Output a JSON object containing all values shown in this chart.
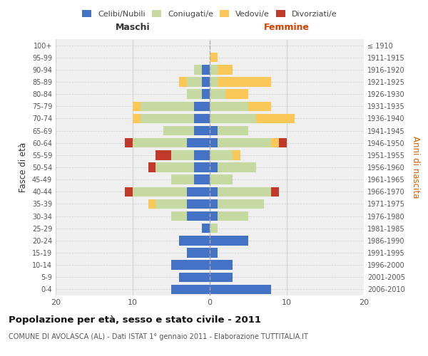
{
  "age_groups": [
    "0-4",
    "5-9",
    "10-14",
    "15-19",
    "20-24",
    "25-29",
    "30-34",
    "35-39",
    "40-44",
    "45-49",
    "50-54",
    "55-59",
    "60-64",
    "65-69",
    "70-74",
    "75-79",
    "80-84",
    "85-89",
    "90-94",
    "95-99",
    "100+"
  ],
  "birth_years": [
    "2006-2010",
    "2001-2005",
    "1996-2000",
    "1991-1995",
    "1986-1990",
    "1981-1985",
    "1976-1980",
    "1971-1975",
    "1966-1970",
    "1961-1965",
    "1956-1960",
    "1951-1955",
    "1946-1950",
    "1941-1945",
    "1936-1940",
    "1931-1935",
    "1926-1930",
    "1921-1925",
    "1916-1920",
    "1911-1915",
    "≤ 1910"
  ],
  "maschi": {
    "celibi": [
      5,
      4,
      5,
      3,
      4,
      1,
      3,
      3,
      3,
      2,
      2,
      2,
      3,
      2,
      2,
      2,
      1,
      1,
      1,
      0,
      0
    ],
    "coniugati": [
      0,
      0,
      0,
      0,
      0,
      0,
      2,
      4,
      7,
      3,
      5,
      3,
      7,
      4,
      7,
      7,
      2,
      2,
      1,
      0,
      0
    ],
    "vedovi": [
      0,
      0,
      0,
      0,
      0,
      0,
      0,
      1,
      0,
      0,
      0,
      0,
      0,
      0,
      1,
      1,
      0,
      1,
      0,
      0,
      0
    ],
    "divorziati": [
      0,
      0,
      0,
      0,
      0,
      0,
      0,
      0,
      1,
      0,
      1,
      2,
      1,
      0,
      0,
      0,
      0,
      0,
      0,
      0,
      0
    ]
  },
  "femmine": {
    "nubili": [
      8,
      3,
      3,
      1,
      5,
      0,
      1,
      1,
      1,
      0,
      1,
      0,
      1,
      1,
      0,
      0,
      0,
      0,
      0,
      0,
      0
    ],
    "coniugate": [
      0,
      0,
      0,
      0,
      0,
      1,
      4,
      6,
      7,
      3,
      5,
      3,
      7,
      4,
      6,
      5,
      2,
      1,
      1,
      0,
      0
    ],
    "vedove": [
      0,
      0,
      0,
      0,
      0,
      0,
      0,
      0,
      0,
      0,
      0,
      1,
      1,
      0,
      5,
      3,
      3,
      7,
      2,
      1,
      0
    ],
    "divorziate": [
      0,
      0,
      0,
      0,
      0,
      0,
      0,
      0,
      1,
      0,
      0,
      0,
      1,
      0,
      0,
      0,
      0,
      0,
      0,
      0,
      0
    ]
  },
  "color_celibi": "#4472c4",
  "color_coniugati": "#c5d9a0",
  "color_vedovi": "#fac858",
  "color_divorziati": "#c0392b",
  "xlim": 20,
  "title": "Popolazione per età, sesso e stato civile - 2011",
  "subtitle": "COMUNE DI AVOLASCA (AL) - Dati ISTAT 1° gennaio 2011 - Elaborazione TUTTITALIA.IT",
  "ylabel_left": "Fasce di età",
  "ylabel_right": "Anni di nascita",
  "xlabel_maschi": "Maschi",
  "xlabel_femmine": "Femmine",
  "bg_color": "#efefef",
  "grid_color": "#cccccc"
}
